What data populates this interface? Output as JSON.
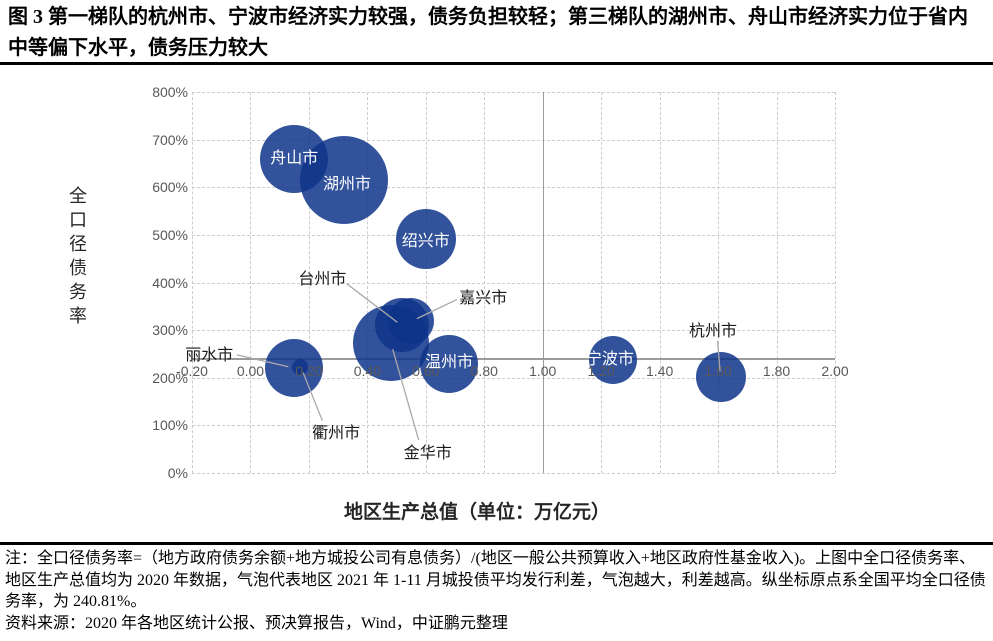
{
  "figure": {
    "title": "图 3  第一梯队的杭州市、宁波市经济实力较强，债务负担较轻；第三梯队的湖州市、舟山市经济实力位于省内中等偏下水平，债务压力较大"
  },
  "notes": {
    "note": "注：全口径债务率=（地方政府债务余额+地方城投公司有息债务）/(地区一般公共预算收入+地区政府性基金收入)。上图中全口径债务率、地区生产总值均为 2020 年数据，气泡代表地区 2021 年 1-11 月城投债平均发行利差，气泡越大，利差越高。纵坐标原点系全国平均全口径债务率，为 240.81%。",
    "source": "资料来源：2020 年各地区统计公报、预决算报告，Wind，中证鹏元整理"
  },
  "chart_data": {
    "type": "scatter",
    "subtype": "bubble",
    "title": "",
    "xlabel": "地区生产总值（单位：万亿元）",
    "ylabel": "全口径债务率",
    "x_range": [
      -0.2,
      2.0
    ],
    "x_tick_step": 0.2,
    "y_range": [
      0,
      800
    ],
    "y_tick_step": 100,
    "y_tick_suffix": "%",
    "x_axis_cross_at_y": 240.81,
    "y_axis_cross_at_x": 1.0,
    "grid": "dashed",
    "legend": "none",
    "bubble_size_meaning": "2021年1-11月城投债平均发行利差，气泡越大，利差越高",
    "colors": {
      "bubble_fill": "rgba(14,52,138,0.85)",
      "grid": "#cdcdcd",
      "axis": "#9b9b9b",
      "tick_text": "#595959",
      "leader_line": "#a9a9a9",
      "label_dark": "#1a1a1a",
      "label_light": "#ffffff"
    },
    "points": [
      {
        "city": "舟山市",
        "gdp": 0.15,
        "debt_ratio": 660,
        "r": 34,
        "label": "inside",
        "offset": [
          0,
          -3
        ]
      },
      {
        "city": "湖州市",
        "gdp": 0.32,
        "debt_ratio": 615,
        "r": 44,
        "label": "inside",
        "offset": [
          3,
          2
        ]
      },
      {
        "city": "绍兴市",
        "gdp": 0.6,
        "debt_ratio": 492,
        "r": 30,
        "label": "inside",
        "offset": [
          0,
          0
        ]
      },
      {
        "city": "嘉兴市",
        "gdp": 0.55,
        "debt_ratio": 320,
        "r": 23,
        "label": "outside",
        "offset": [
          72,
          -25
        ]
      },
      {
        "city": "台州市",
        "gdp": 0.52,
        "debt_ratio": 310,
        "r": 27,
        "label": "outside",
        "offset": [
          -80,
          -48
        ]
      },
      {
        "city": "金华市",
        "gdp": 0.48,
        "debt_ratio": 272,
        "r": 38,
        "label": "outside",
        "offset": [
          37,
          108
        ]
      },
      {
        "city": "温州市",
        "gdp": 0.68,
        "debt_ratio": 228,
        "r": 29,
        "label": "inside",
        "offset": [
          0,
          -4
        ]
      },
      {
        "city": "丽水市",
        "gdp": 0.15,
        "debt_ratio": 221,
        "r": 29,
        "label": "outside",
        "offset": [
          -85,
          -15
        ]
      },
      {
        "city": "衢州市",
        "gdp": 0.17,
        "debt_ratio": 222,
        "r": 8,
        "label": "outside",
        "offset": [
          36,
          64
        ]
      },
      {
        "city": "宁波市",
        "gdp": 1.24,
        "debt_ratio": 238,
        "r": 24,
        "label": "inside",
        "offset": [
          -3,
          -3
        ]
      },
      {
        "city": "杭州市",
        "gdp": 1.61,
        "debt_ratio": 201,
        "r": 25,
        "label": "outside",
        "offset": [
          -8,
          -48
        ]
      }
    ]
  }
}
